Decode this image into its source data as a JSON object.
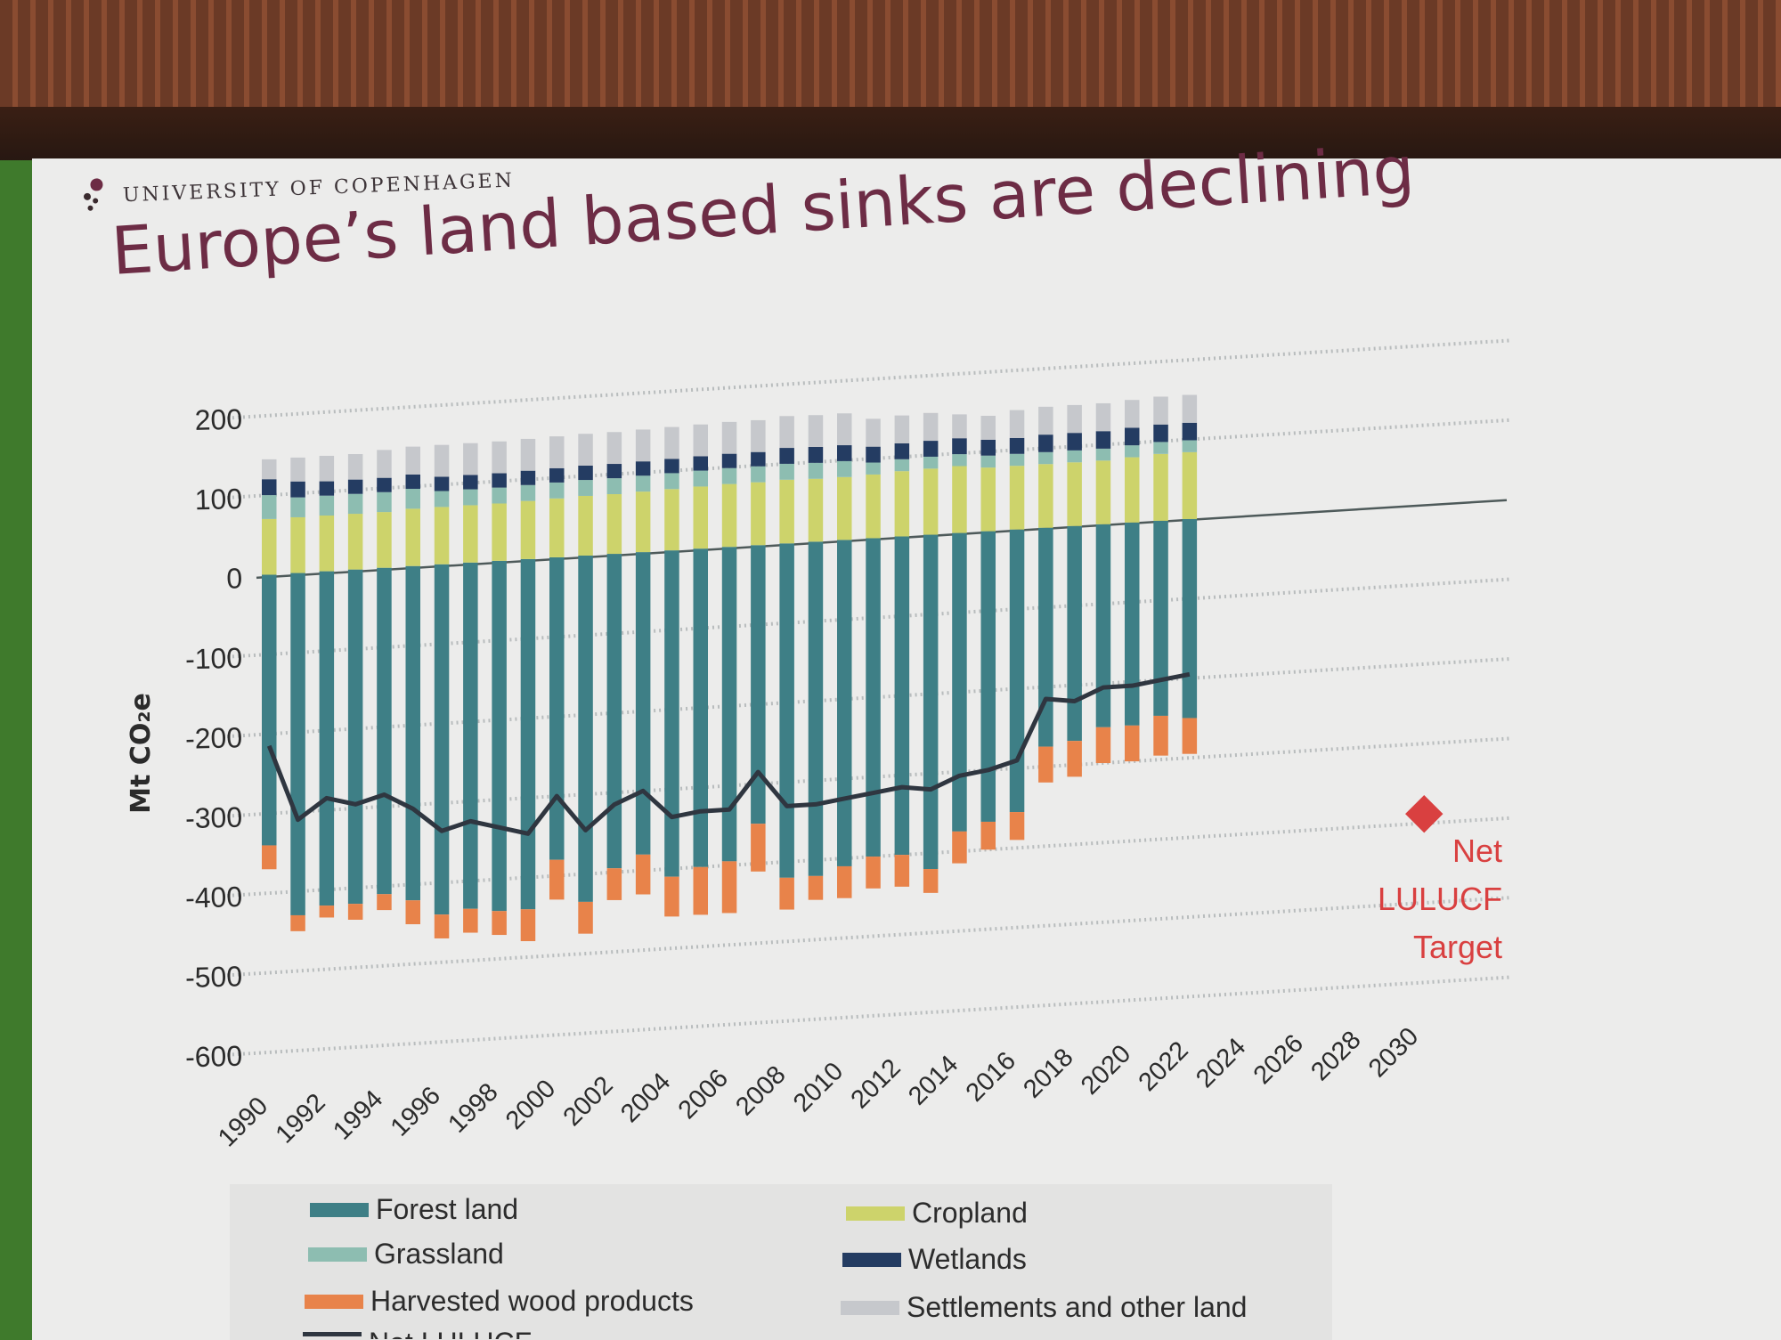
{
  "slide": {
    "institution": "UNIVERSITY OF COPENHAGEN",
    "title": "Europe’s land based sinks are declining"
  },
  "chart_data": {
    "type": "bar",
    "stacked": true,
    "title": "",
    "xlabel": "",
    "ylabel": "Mt CO₂e",
    "ylim": [
      -600,
      200
    ],
    "yticks": [
      "200",
      "100",
      "0",
      "-100",
      "-200",
      "-300",
      "-400",
      "-500",
      "-600"
    ],
    "grid": "dotted horizontal",
    "x_tick_labels": [
      "1990",
      "1992",
      "1994",
      "1996",
      "1998",
      "2000",
      "2002",
      "2004",
      "2006",
      "2008",
      "2010",
      "2012",
      "2014",
      "2016",
      "2018",
      "2020",
      "2022",
      "2024",
      "2026",
      "2028",
      "2030"
    ],
    "categories": [
      "1990",
      "1991",
      "1992",
      "1993",
      "1994",
      "1995",
      "1996",
      "1997",
      "1998",
      "1999",
      "2000",
      "2001",
      "2002",
      "2003",
      "2004",
      "2005",
      "2006",
      "2007",
      "2008",
      "2009",
      "2010",
      "2011",
      "2012",
      "2013",
      "2014",
      "2015",
      "2016",
      "2017",
      "2018",
      "2019",
      "2020",
      "2021",
      "2022"
    ],
    "series": [
      {
        "name": "Forest land",
        "color": "#3e7f86",
        "values": [
          -340,
          -430,
          -420,
          -420,
          -410,
          -420,
          -440,
          -435,
          -440,
          -440,
          -380,
          -435,
          -395,
          -380,
          -410,
          -400,
          -395,
          -350,
          -420,
          -420,
          -410,
          -400,
          -400,
          -420,
          -375,
          -365,
          -355,
          -275,
          -270,
          -255,
          -255,
          -245,
          -250
        ]
      },
      {
        "name": "Harvested wood products",
        "color": "#e8834a",
        "values": [
          -30,
          -20,
          -15,
          -20,
          -20,
          -30,
          -30,
          -30,
          -30,
          -40,
          -50,
          -40,
          -40,
          -50,
          -50,
          -60,
          -65,
          -60,
          -40,
          -30,
          -40,
          -40,
          -40,
          -30,
          -40,
          -35,
          -35,
          -45,
          -45,
          -45,
          -45,
          -50,
          -45
        ]
      },
      {
        "name": "Cropland",
        "color": "#cdd36b",
        "values": [
          70,
          70,
          70,
          70,
          70,
          72,
          72,
          72,
          72,
          73,
          74,
          75,
          75,
          76,
          77,
          78,
          79,
          79,
          80,
          79,
          79,
          80,
          82,
          83,
          84,
          80,
          80,
          80,
          80,
          80,
          82,
          84,
          84
        ]
      },
      {
        "name": "Grassland",
        "color": "#8dbdb1",
        "values": [
          30,
          25,
          25,
          25,
          25,
          25,
          20,
          20,
          20,
          20,
          20,
          20,
          20,
          20,
          20,
          20,
          20,
          20,
          20,
          20,
          20,
          15,
          15,
          15,
          15,
          15,
          15,
          15,
          15,
          15,
          15,
          15,
          15
        ]
      },
      {
        "name": "Wetlands",
        "color": "#243c62",
        "values": [
          20,
          20,
          18,
          18,
          18,
          18,
          18,
          18,
          18,
          18,
          18,
          18,
          18,
          18,
          18,
          18,
          18,
          18,
          20,
          20,
          20,
          20,
          20,
          20,
          20,
          20,
          20,
          22,
          22,
          22,
          22,
          22,
          22
        ]
      },
      {
        "name": "Settlements and other land",
        "color": "#c6c8cc",
        "values": [
          25,
          30,
          32,
          32,
          35,
          35,
          40,
          40,
          40,
          40,
          40,
          40,
          40,
          40,
          40,
          40,
          40,
          40,
          40,
          40,
          40,
          35,
          35,
          35,
          30,
          30,
          35,
          35,
          35,
          35,
          35,
          35,
          35
        ]
      },
      {
        "name": "Net LULUCF",
        "kind": "line",
        "color": "#2f3640",
        "values": [
          -215,
          -310,
          -285,
          -295,
          -285,
          -305,
          -335,
          -325,
          -335,
          -345,
          -300,
          -345,
          -315,
          -300,
          -335,
          -330,
          -330,
          -285,
          -330,
          -330,
          -325,
          -320,
          -315,
          -320,
          -305,
          -300,
          -290,
          -215,
          -220,
          -205,
          -205,
          -200,
          -195
        ]
      }
    ],
    "target": {
      "label_lines": [
        "Net",
        "LULUCF",
        "Target"
      ],
      "year": "2030",
      "value": -310,
      "color": "#d94040"
    }
  }
}
